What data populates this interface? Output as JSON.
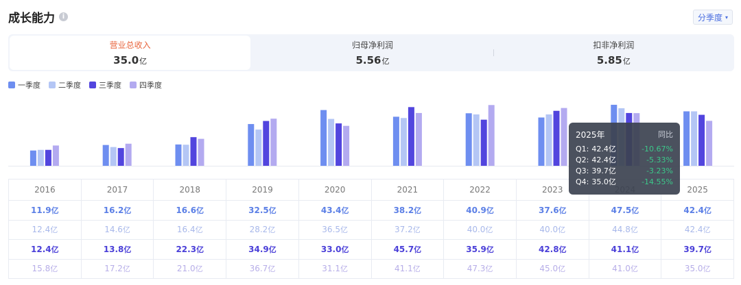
{
  "header": {
    "title": "成长能力",
    "info_icon": "i",
    "period_label": "分季度",
    "caret": "▾"
  },
  "tabs": [
    {
      "label": "营业总收入",
      "value": "35.0",
      "unit": "亿",
      "active": true
    },
    {
      "label": "归母净利润",
      "value": "5.56",
      "unit": "亿",
      "active": false
    },
    {
      "label": "扣非净利润",
      "value": "5.85",
      "unit": "亿",
      "active": false
    }
  ],
  "colors": {
    "q1": "#6e8ef0",
    "q2": "#b4c6f5",
    "q3": "#5245de",
    "q4": "#b3aaf0"
  },
  "chart_data": {
    "type": "bar",
    "categories": [
      "2016",
      "2017",
      "2018",
      "2019",
      "2020",
      "2021",
      "2022",
      "2023",
      "2024",
      "2025"
    ],
    "series": [
      {
        "name": "一季度",
        "values": [
          11.9,
          16.2,
          16.6,
          32.5,
          43.4,
          38.2,
          40.9,
          37.6,
          47.5,
          42.4
        ]
      },
      {
        "name": "二季度",
        "values": [
          12.4,
          14.6,
          16.4,
          28.2,
          36.5,
          37.2,
          40.0,
          40.0,
          44.8,
          42.4
        ]
      },
      {
        "name": "三季度",
        "values": [
          12.4,
          13.8,
          22.3,
          34.9,
          33.0,
          45.7,
          35.9,
          42.8,
          41.1,
          39.7
        ]
      },
      {
        "name": "四季度",
        "values": [
          15.8,
          17.2,
          21.0,
          36.7,
          31.1,
          41.1,
          47.3,
          45.0,
          41.0,
          35.0
        ]
      }
    ],
    "unit": "亿",
    "ylim": [
      0,
      48
    ]
  },
  "table": {
    "years": [
      "2016",
      "2017",
      "2018",
      "2019",
      "2020",
      "2021",
      "2022",
      "2023",
      "2024",
      "2025"
    ],
    "rows": [
      [
        "11.9",
        "16.2",
        "16.6",
        "32.5",
        "43.4",
        "38.2",
        "40.9",
        "37.6",
        "47.5",
        "42.4"
      ],
      [
        "12.4",
        "14.6",
        "16.4",
        "28.2",
        "36.5",
        "37.2",
        "40.0",
        "40.0",
        "44.8",
        "42.4"
      ],
      [
        "12.4",
        "13.8",
        "22.3",
        "34.9",
        "33.0",
        "45.7",
        "35.9",
        "42.8",
        "41.1",
        "39.7"
      ],
      [
        "15.8",
        "17.2",
        "21.0",
        "36.7",
        "31.1",
        "41.1",
        "47.3",
        "45.0",
        "41.0",
        "35.0"
      ]
    ],
    "unit": "亿"
  },
  "tooltip": {
    "year": "2025年",
    "yoy_label": "同比",
    "rows": [
      {
        "q": "Q1:",
        "value": "42.4亿",
        "chg": "-10.67%"
      },
      {
        "q": "Q2:",
        "value": "42.4亿",
        "chg": "-5.33%"
      },
      {
        "q": "Q3:",
        "value": "39.7亿",
        "chg": "-3.23%"
      },
      {
        "q": "Q4:",
        "value": "35.0亿",
        "chg": "-14.55%"
      }
    ]
  }
}
